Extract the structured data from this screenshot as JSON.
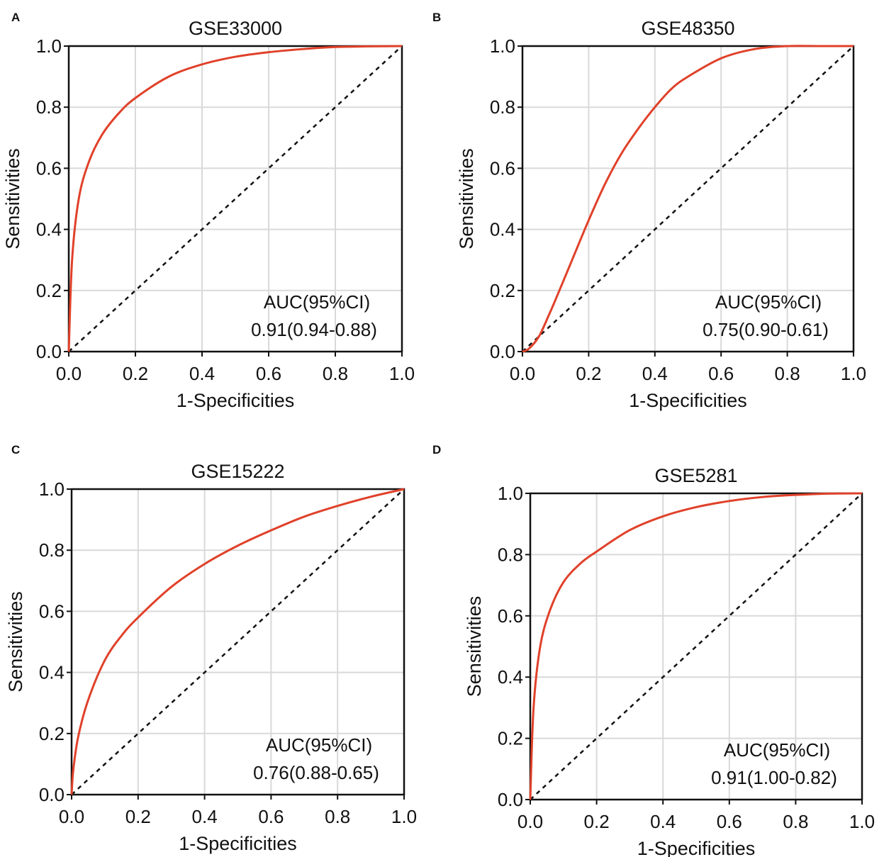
{
  "colors": {
    "curve": "#e0412a",
    "grid": "#d9d9d9",
    "axis": "#111111"
  },
  "chart_data": [
    {
      "panel": "A",
      "type": "line",
      "title": "GSE33000",
      "xlabel": "1-Specificities",
      "ylabel": "Sensitivities",
      "xlim": [
        0,
        1
      ],
      "ylim": [
        0,
        1
      ],
      "xticks": [
        "0.0",
        "0.2",
        "0.4",
        "0.6",
        "0.8",
        "1.0"
      ],
      "yticks": [
        "0.0",
        "0.2",
        "0.4",
        "0.6",
        "0.8",
        "1.0"
      ],
      "grid": true,
      "series": [
        {
          "name": "ROC",
          "x": [
            0,
            0.01,
            0.03,
            0.06,
            0.1,
            0.15,
            0.2,
            0.3,
            0.4,
            0.5,
            0.6,
            0.7,
            0.8,
            0.9,
            1.0
          ],
          "y": [
            0,
            0.3,
            0.5,
            0.62,
            0.71,
            0.78,
            0.83,
            0.9,
            0.94,
            0.965,
            0.98,
            0.99,
            0.997,
            0.999,
            1.0
          ]
        },
        {
          "name": "reference",
          "x": [
            0,
            1
          ],
          "y": [
            0,
            1
          ]
        }
      ],
      "annotation": [
        "AUC(95%CI)",
        "0.91(0.94-0.88)"
      ]
    },
    {
      "panel": "B",
      "type": "line",
      "title": "GSE48350",
      "xlabel": "1-Specificities",
      "ylabel": "Sensitivities",
      "xlim": [
        0,
        1
      ],
      "ylim": [
        0,
        1
      ],
      "xticks": [
        "0.0",
        "0.2",
        "0.4",
        "0.6",
        "0.8",
        "1.0"
      ],
      "yticks": [
        "0.0",
        "0.2",
        "0.4",
        "0.6",
        "0.8",
        "1.0"
      ],
      "grid": true,
      "series": [
        {
          "name": "ROC",
          "x": [
            0,
            0.02,
            0.05,
            0.08,
            0.1,
            0.15,
            0.2,
            0.25,
            0.3,
            0.35,
            0.4,
            0.45,
            0.5,
            0.6,
            0.7,
            0.8,
            0.9,
            1.0
          ],
          "y": [
            0,
            0.01,
            0.05,
            0.12,
            0.17,
            0.3,
            0.43,
            0.55,
            0.65,
            0.73,
            0.8,
            0.86,
            0.9,
            0.96,
            0.99,
            1.0,
            1.0,
            1.0
          ]
        },
        {
          "name": "reference",
          "x": [
            0,
            1
          ],
          "y": [
            0,
            1
          ]
        }
      ],
      "annotation": [
        "AUC(95%CI)",
        "0.75(0.90-0.61)"
      ]
    },
    {
      "panel": "C",
      "type": "line",
      "title": "GSE15222",
      "xlabel": "1-Specificities",
      "ylabel": "Sensitivities",
      "xlim": [
        0,
        1
      ],
      "ylim": [
        0,
        1
      ],
      "xticks": [
        "0.0",
        "0.2",
        "0.4",
        "0.6",
        "0.8",
        "1.0"
      ],
      "yticks": [
        "0.0",
        "0.2",
        "0.4",
        "0.6",
        "0.8",
        "1.0"
      ],
      "grid": true,
      "series": [
        {
          "name": "ROC",
          "x": [
            0,
            0.005,
            0.02,
            0.05,
            0.1,
            0.15,
            0.2,
            0.3,
            0.4,
            0.5,
            0.6,
            0.7,
            0.8,
            0.9,
            1.0
          ],
          "y": [
            0,
            0.08,
            0.19,
            0.31,
            0.44,
            0.52,
            0.58,
            0.68,
            0.755,
            0.815,
            0.865,
            0.91,
            0.945,
            0.975,
            1.0
          ]
        },
        {
          "name": "reference",
          "x": [
            0,
            1
          ],
          "y": [
            0,
            1
          ]
        }
      ],
      "annotation": [
        "AUC(95%CI)",
        "0.76(0.88-0.65)"
      ]
    },
    {
      "panel": "D",
      "type": "line",
      "title": "GSE5281",
      "xlabel": "1-Specificities",
      "ylabel": "Sensitivities",
      "xlim": [
        0,
        1
      ],
      "ylim": [
        0,
        1
      ],
      "xticks": [
        "0.0",
        "0.2",
        "0.4",
        "0.6",
        "0.8",
        "1.0"
      ],
      "yticks": [
        "0.0",
        "0.2",
        "0.4",
        "0.6",
        "0.8",
        "1.0"
      ],
      "grid": true,
      "series": [
        {
          "name": "ROC",
          "x": [
            0,
            0.01,
            0.03,
            0.06,
            0.1,
            0.15,
            0.2,
            0.3,
            0.4,
            0.5,
            0.6,
            0.7,
            0.8,
            0.9,
            1.0
          ],
          "y": [
            0,
            0.3,
            0.5,
            0.62,
            0.71,
            0.77,
            0.81,
            0.88,
            0.925,
            0.955,
            0.975,
            0.988,
            0.995,
            0.999,
            1.0
          ]
        },
        {
          "name": "reference",
          "x": [
            0,
            1
          ],
          "y": [
            0,
            1
          ]
        }
      ],
      "annotation": [
        "AUC(95%CI)",
        "0.91(1.00-0.82)"
      ]
    }
  ]
}
